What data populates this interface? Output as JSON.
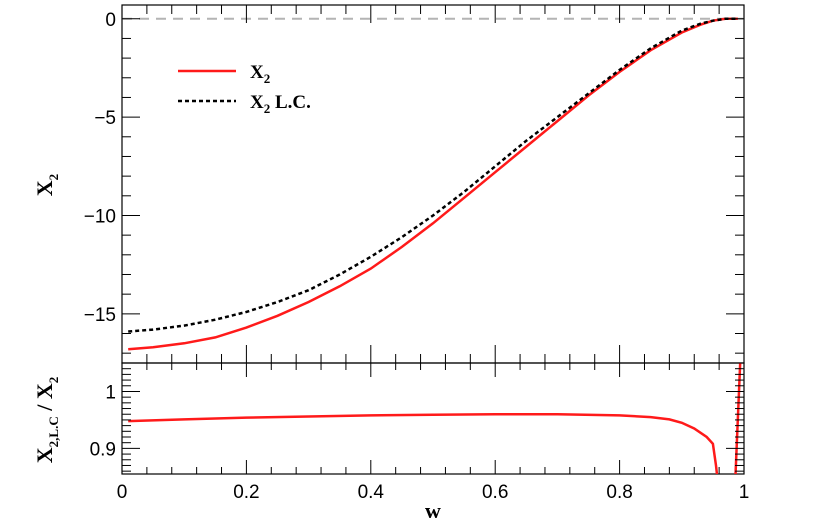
{
  "chart_data": [
    {
      "type": "line",
      "panel": "top",
      "ylabel": "X",
      "ylabel_sub": "2",
      "ylim": [
        -17.5,
        0.7
      ],
      "xlim": [
        0,
        1
      ],
      "yticks": [
        0,
        -5,
        -10,
        -15
      ],
      "yticklabels": [
        "0",
        "−5",
        "−10",
        "−15"
      ],
      "reference_line": {
        "y": 0,
        "color": "#b4b4b4",
        "style": "dashed"
      },
      "legend": {
        "placement": "top-left"
      },
      "series": [
        {
          "name": "X",
          "name_sub": "2",
          "color": "#ff1a1a",
          "style": "solid",
          "x": [
            0.01,
            0.05,
            0.1,
            0.15,
            0.2,
            0.25,
            0.3,
            0.35,
            0.4,
            0.45,
            0.5,
            0.55,
            0.6,
            0.65,
            0.7,
            0.75,
            0.8,
            0.85,
            0.9,
            0.93,
            0.95,
            0.97,
            0.99
          ],
          "y": [
            -16.8,
            -16.7,
            -16.5,
            -16.2,
            -15.7,
            -15.1,
            -14.4,
            -13.6,
            -12.7,
            -11.6,
            -10.4,
            -9.1,
            -7.8,
            -6.5,
            -5.2,
            -3.9,
            -2.7,
            -1.6,
            -0.7,
            -0.3,
            -0.1,
            0.0,
            0.0
          ]
        },
        {
          "name": "X",
          "name_sub": "2",
          "name_suffix": " L.C.",
          "color": "#000000",
          "style": "dotted",
          "x": [
            0.01,
            0.05,
            0.1,
            0.15,
            0.2,
            0.25,
            0.3,
            0.35,
            0.4,
            0.45,
            0.5,
            0.55,
            0.6,
            0.65,
            0.7,
            0.75,
            0.8,
            0.85,
            0.9,
            0.93,
            0.95,
            0.97,
            0.99
          ],
          "y": [
            -15.9,
            -15.8,
            -15.6,
            -15.3,
            -14.9,
            -14.4,
            -13.8,
            -13.0,
            -12.1,
            -11.1,
            -10.0,
            -8.8,
            -7.5,
            -6.2,
            -5.0,
            -3.8,
            -2.6,
            -1.5,
            -0.6,
            -0.25,
            -0.1,
            0.0,
            0.0
          ]
        }
      ]
    },
    {
      "type": "line",
      "panel": "bottom",
      "ylabel": "X",
      "ylabel_sub": "2,L.C",
      "ylabel_suffix": " / X",
      "ylabel_sub2": "2",
      "xlabel": "w",
      "xlim": [
        0,
        1
      ],
      "ylim": [
        0.855,
        1.05
      ],
      "xticks": [
        0,
        0.2,
        0.4,
        0.6,
        0.8,
        1
      ],
      "xticklabels": [
        "0",
        "0.2",
        "0.4",
        "0.6",
        "0.8",
        "1"
      ],
      "yticks": [
        0.9,
        1
      ],
      "yticklabels": [
        "0.9",
        "1"
      ],
      "series": [
        {
          "color": "#ff1a1a",
          "style": "solid",
          "x": [
            0.01,
            0.1,
            0.2,
            0.3,
            0.4,
            0.5,
            0.6,
            0.7,
            0.8,
            0.85,
            0.88,
            0.9,
            0.92,
            0.94,
            0.95,
            0.955,
            0.96
          ],
          "y": [
            0.948,
            0.951,
            0.954,
            0.956,
            0.958,
            0.959,
            0.96,
            0.96,
            0.958,
            0.955,
            0.951,
            0.945,
            0.935,
            0.92,
            0.908,
            0.87,
            0.82
          ]
        },
        {
          "color": "#ff1a1a",
          "style": "solid",
          "x": [
            0.985,
            0.99,
            0.995
          ],
          "y": [
            0.82,
            0.95,
            1.08
          ]
        }
      ]
    }
  ]
}
